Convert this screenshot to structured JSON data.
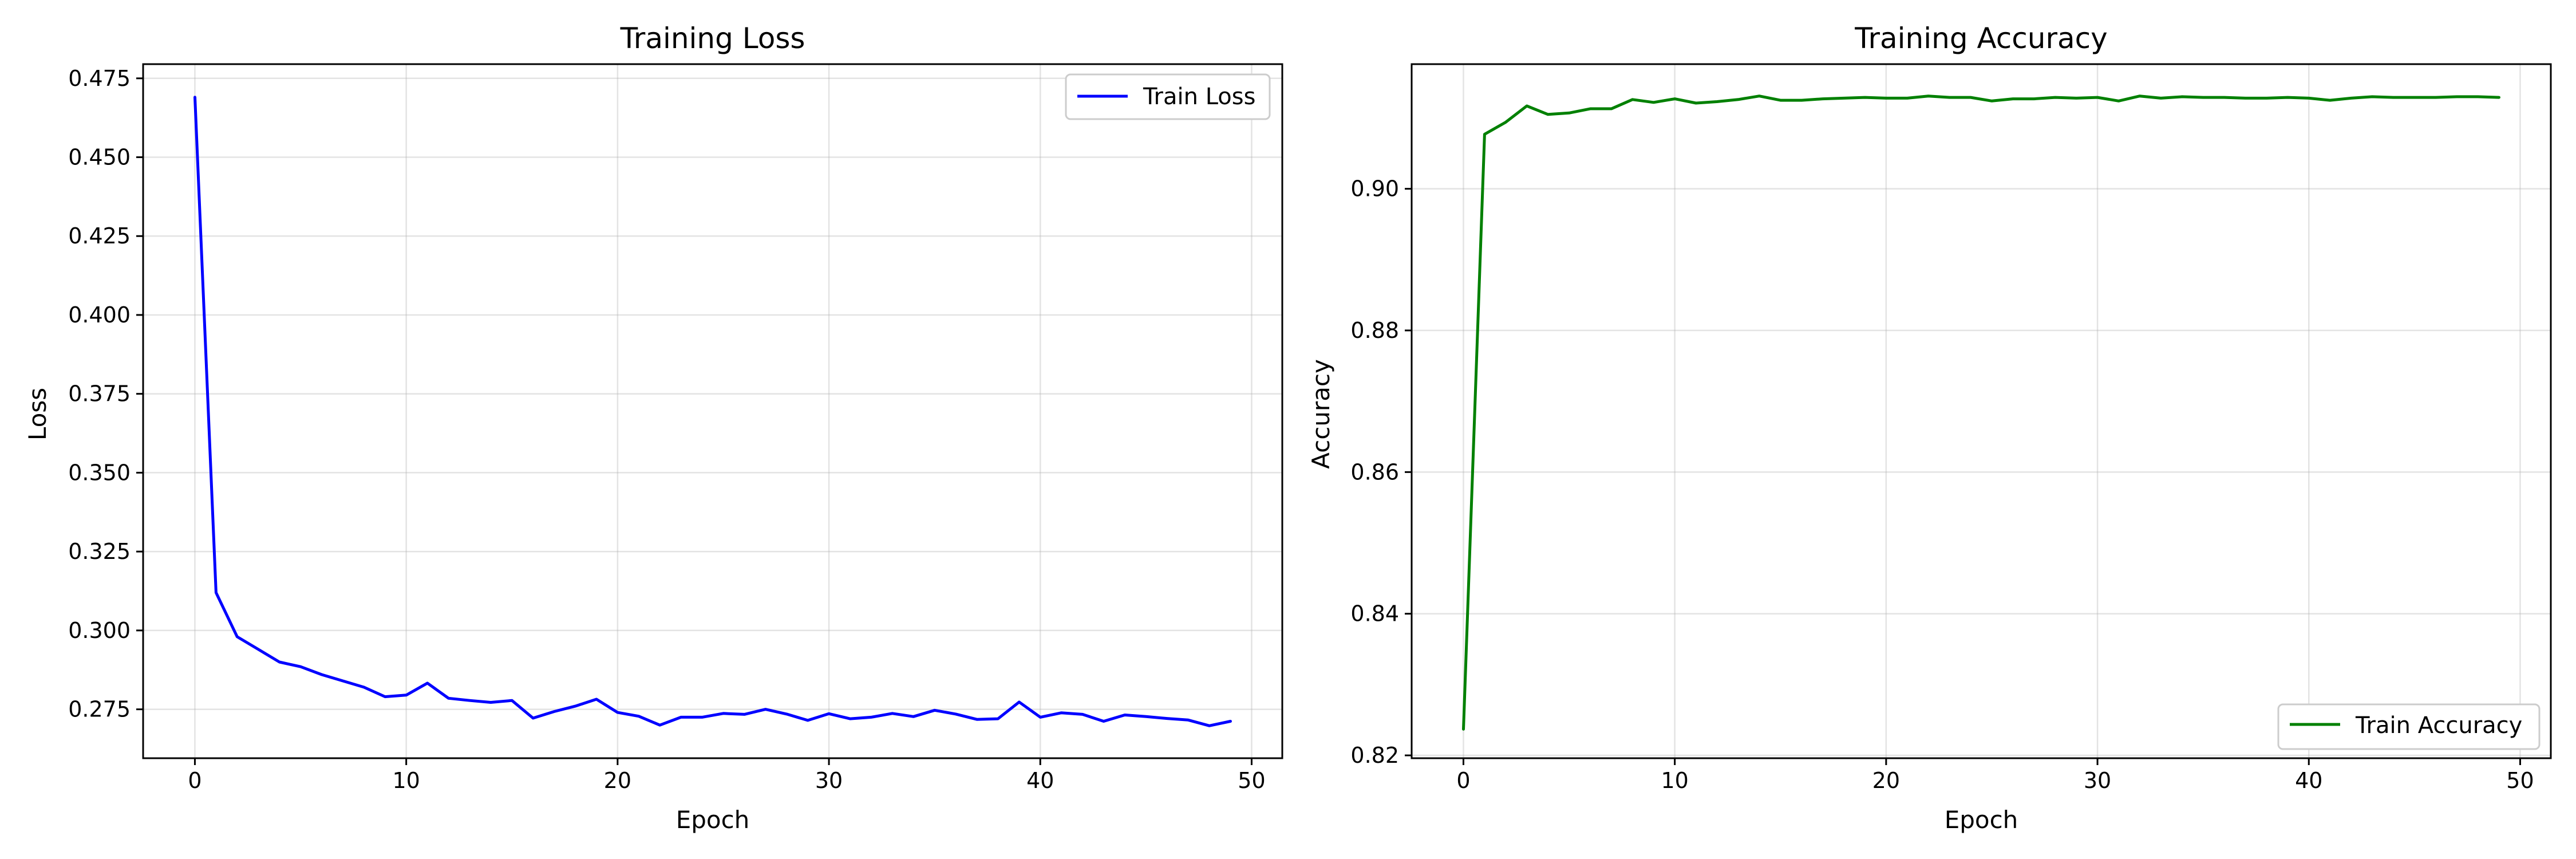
{
  "chart_data": [
    {
      "type": "line",
      "title": "Training Loss",
      "xlabel": "Epoch",
      "ylabel": "Loss",
      "xlim": [
        -2.45,
        51.45
      ],
      "ylim": [
        0.2595,
        0.4795
      ],
      "xticks": [
        0,
        10,
        20,
        30,
        40,
        50
      ],
      "yticks": [
        0.275,
        0.3,
        0.325,
        0.35,
        0.375,
        0.4,
        0.425,
        0.45,
        0.475
      ],
      "ytick_format": 3,
      "grid": true,
      "legend_position": "top-right",
      "series": [
        {
          "name": "Train Loss",
          "color": "#0000ff",
          "x": [
            0,
            1,
            2,
            3,
            4,
            5,
            6,
            7,
            8,
            9,
            10,
            11,
            12,
            13,
            14,
            15,
            16,
            17,
            18,
            19,
            20,
            21,
            22,
            23,
            24,
            25,
            26,
            27,
            28,
            29,
            30,
            31,
            32,
            33,
            34,
            35,
            36,
            37,
            38,
            39,
            40,
            41,
            42,
            43,
            44,
            45,
            46,
            47,
            48,
            49
          ],
          "y": [
            0.469,
            0.312,
            0.298,
            0.294,
            0.29,
            0.2885,
            0.286,
            0.284,
            0.282,
            0.279,
            0.2795,
            0.2833,
            0.2785,
            0.2778,
            0.2772,
            0.2778,
            0.2722,
            0.2743,
            0.276,
            0.2782,
            0.274,
            0.2728,
            0.27,
            0.2725,
            0.2725,
            0.2737,
            0.2734,
            0.275,
            0.2735,
            0.2715,
            0.2736,
            0.272,
            0.2725,
            0.2737,
            0.2727,
            0.2747,
            0.2735,
            0.2718,
            0.272,
            0.2773,
            0.2725,
            0.2739,
            0.2734,
            0.2712,
            0.2732,
            0.2727,
            0.2721,
            0.2716,
            0.2698,
            0.2712
          ]
        }
      ]
    },
    {
      "type": "line",
      "title": "Training Accuracy",
      "xlabel": "Epoch",
      "ylabel": "Accuracy",
      "xlim": [
        -2.45,
        51.45
      ],
      "ylim": [
        0.8196,
        0.9176
      ],
      "xticks": [
        0,
        10,
        20,
        30,
        40,
        50
      ],
      "yticks": [
        0.82,
        0.84,
        0.86,
        0.88,
        0.9
      ],
      "ytick_format": 2,
      "grid": true,
      "legend_position": "bottom-right",
      "series": [
        {
          "name": "Train Accuracy",
          "color": "#008000",
          "x": [
            0,
            1,
            2,
            3,
            4,
            5,
            6,
            7,
            8,
            9,
            10,
            11,
            12,
            13,
            14,
            15,
            16,
            17,
            18,
            19,
            20,
            21,
            22,
            23,
            24,
            25,
            26,
            27,
            28,
            29,
            30,
            31,
            32,
            33,
            34,
            35,
            36,
            37,
            38,
            39,
            40,
            41,
            42,
            43,
            44,
            45,
            46,
            47,
            48,
            49
          ],
          "y": [
            0.8237,
            0.9077,
            0.9094,
            0.9117,
            0.9105,
            0.9107,
            0.9113,
            0.9113,
            0.9126,
            0.9122,
            0.9127,
            0.9121,
            0.9123,
            0.9126,
            0.9131,
            0.9125,
            0.9125,
            0.9127,
            0.9128,
            0.9129,
            0.9128,
            0.9128,
            0.9131,
            0.9129,
            0.9129,
            0.9124,
            0.9127,
            0.9127,
            0.9129,
            0.9128,
            0.9129,
            0.9124,
            0.9131,
            0.9128,
            0.913,
            0.9129,
            0.9129,
            0.9128,
            0.9128,
            0.9129,
            0.9128,
            0.9125,
            0.9128,
            0.913,
            0.9129,
            0.9129,
            0.9129,
            0.913,
            0.913,
            0.9129
          ]
        }
      ]
    }
  ]
}
